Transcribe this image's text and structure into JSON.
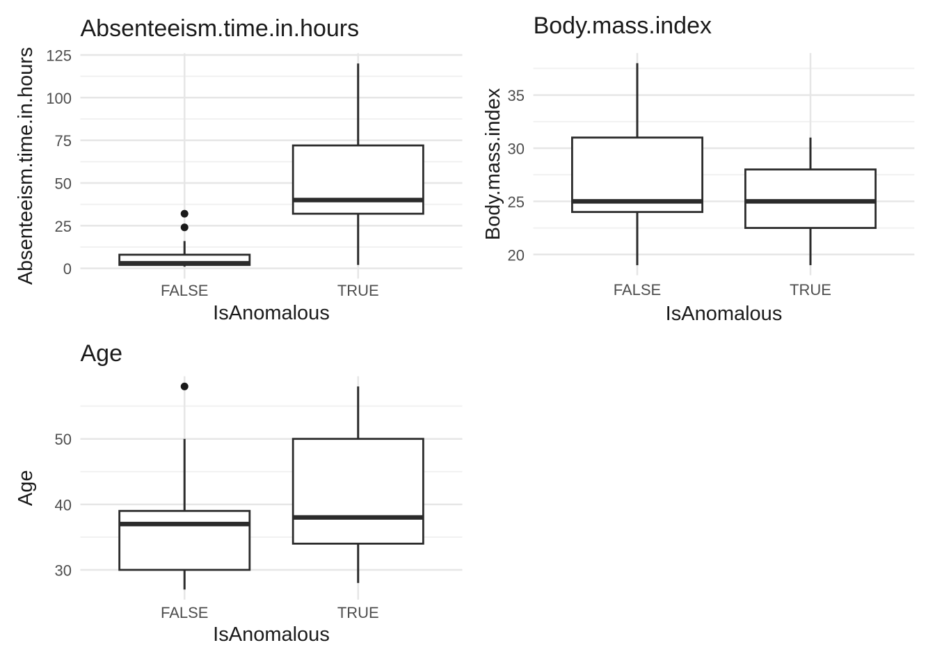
{
  "figure": {
    "background": "#FFFFFF",
    "grid": "2x2, three panels filled, bottom-right empty"
  },
  "style": {
    "box_stroke_color": "#2B2B2B",
    "box_fill_color": "#FFFFFF",
    "outlier_color": "#1A1A1A",
    "grid_major_color": "#E6E6E6",
    "grid_minor_color": "#F1F1F1",
    "tick_label_color": "#4D4D4D",
    "title_color": "#1A1A1A",
    "axis_title_color": "#1A1A1A"
  },
  "chart_data": [
    {
      "type": "boxplot",
      "title": "Absenteeism.time.in.hours",
      "xlabel": "IsAnomalous",
      "ylabel": "Absenteeism.time.in.hours",
      "categories": [
        "FALSE",
        "TRUE"
      ],
      "yticks": [
        0,
        25,
        50,
        75,
        100,
        125
      ],
      "ylim": [
        -6,
        126
      ],
      "grid": true,
      "legend": "none",
      "series": [
        {
          "category": "FALSE",
          "whisker_low": 1,
          "q1": 2,
          "median": 3,
          "q3": 8,
          "whisker_high": 16,
          "outliers": [
            24,
            32
          ]
        },
        {
          "category": "TRUE",
          "whisker_low": 2,
          "q1": 32,
          "median": 40,
          "q3": 72,
          "whisker_high": 120,
          "outliers": []
        }
      ]
    },
    {
      "type": "boxplot",
      "title": "Body.mass.index",
      "xlabel": "IsAnomalous",
      "ylabel": "Body.mass.index",
      "categories": [
        "FALSE",
        "TRUE"
      ],
      "yticks": [
        20,
        25,
        30,
        35
      ],
      "ylim": [
        18.05,
        38.95
      ],
      "grid": true,
      "legend": "none",
      "series": [
        {
          "category": "FALSE",
          "whisker_low": 19,
          "q1": 24,
          "median": 25,
          "q3": 31,
          "whisker_high": 38,
          "outliers": []
        },
        {
          "category": "TRUE",
          "whisker_low": 19,
          "q1": 22.5,
          "median": 25,
          "q3": 28,
          "whisker_high": 31,
          "outliers": []
        }
      ]
    },
    {
      "type": "boxplot",
      "title": "Age",
      "xlabel": "IsAnomalous",
      "ylabel": "Age",
      "categories": [
        "FALSE",
        "TRUE"
      ],
      "yticks": [
        30,
        40,
        50
      ],
      "ylim": [
        25.45,
        59.55
      ],
      "grid": true,
      "legend": "none",
      "series": [
        {
          "category": "FALSE",
          "whisker_low": 27,
          "q1": 30,
          "median": 37,
          "q3": 39,
          "whisker_high": 50,
          "outliers": [
            58
          ]
        },
        {
          "category": "TRUE",
          "whisker_low": 28,
          "q1": 34,
          "median": 38,
          "q3": 50,
          "whisker_high": 58,
          "outliers": []
        }
      ]
    }
  ]
}
